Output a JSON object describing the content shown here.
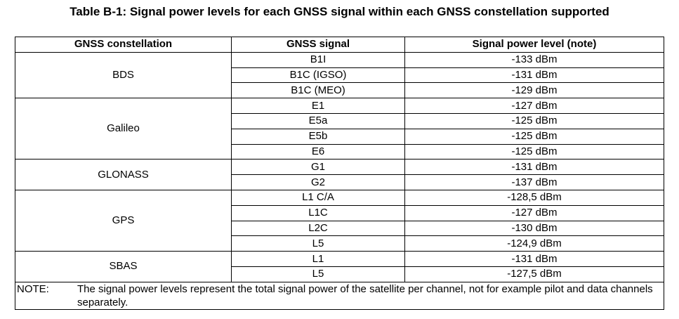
{
  "caption": "Table B-1: Signal power levels for each GNSS signal within each GNSS constellation supported",
  "headers": {
    "constellation": "GNSS constellation",
    "signal": "GNSS signal",
    "power": "Signal power level (note)"
  },
  "groups": [
    {
      "constellation": "BDS",
      "rows": [
        {
          "signal": "B1I",
          "power": "-133 dBm"
        },
        {
          "signal": "B1C (IGSO)",
          "power": "-131 dBm"
        },
        {
          "signal": "B1C (MEO)",
          "power": "-129 dBm"
        }
      ]
    },
    {
      "constellation": "Galileo",
      "rows": [
        {
          "signal": "E1",
          "power": "-127 dBm"
        },
        {
          "signal": "E5a",
          "power": "-125 dBm"
        },
        {
          "signal": "E5b",
          "power": "-125 dBm"
        },
        {
          "signal": "E6",
          "power": "-125 dBm"
        }
      ]
    },
    {
      "constellation": "GLONASS",
      "rows": [
        {
          "signal": "G1",
          "power": "-131 dBm"
        },
        {
          "signal": "G2",
          "power": "-137 dBm"
        }
      ]
    },
    {
      "constellation": "GPS",
      "rows": [
        {
          "signal": "L1 C/A",
          "power": "-128,5 dBm"
        },
        {
          "signal": "L1C",
          "power": "-127 dBm"
        },
        {
          "signal": "L2C",
          "power": "-130 dBm"
        },
        {
          "signal": "L5",
          "power": "-124,9 dBm"
        }
      ]
    },
    {
      "constellation": "SBAS",
      "rows": [
        {
          "signal": "L1",
          "power": "-131 dBm"
        },
        {
          "signal": "L5",
          "power": "-127,5 dBm"
        }
      ]
    }
  ],
  "note": {
    "label": "NOTE:",
    "text": "The signal power levels represent the total signal power of the satellite per channel, not for example pilot and data channels separately."
  }
}
